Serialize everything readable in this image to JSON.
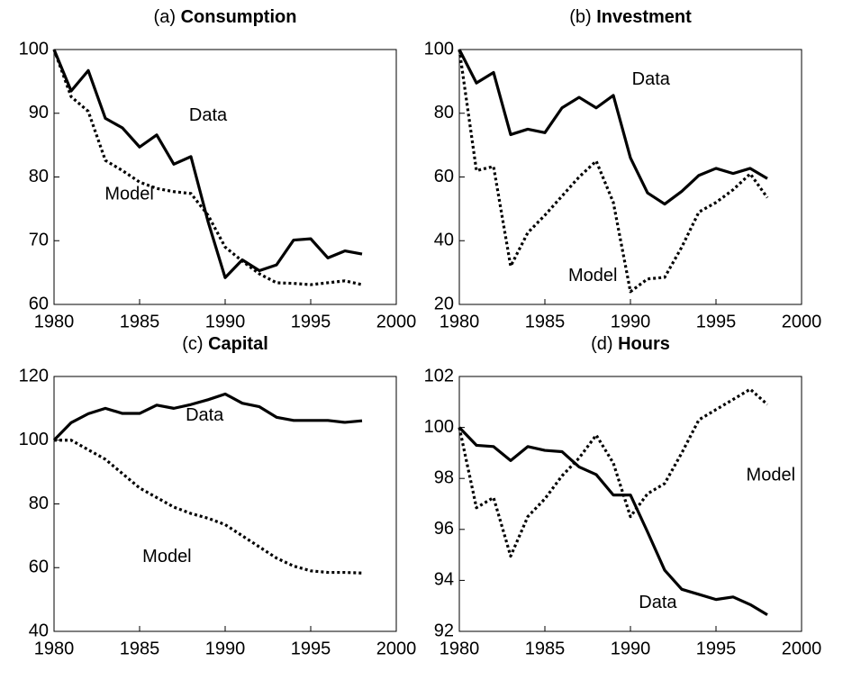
{
  "chart_data": [
    {
      "type": "line",
      "panel": "(a)",
      "title": "Consumption",
      "x": [
        1980,
        1981,
        1982,
        1983,
        1984,
        1985,
        1986,
        1987,
        1988,
        1989,
        1990,
        1991,
        1992,
        1993,
        1994,
        1995,
        1996,
        1997,
        1998
      ],
      "xlim": [
        1980,
        2000
      ],
      "xticks": [
        1980,
        1985,
        1990,
        1995,
        2000
      ],
      "ylim": [
        60,
        100
      ],
      "yticks": [
        60,
        70,
        80,
        90,
        100
      ],
      "series": [
        {
          "name": "Data",
          "color": "#000000",
          "style": "solid",
          "values": [
            100,
            93.5,
            96.7,
            89.2,
            87.7,
            84.7,
            86.6,
            82,
            83.2,
            73,
            64.2,
            67,
            65.3,
            66.2,
            70.1,
            70.3,
            67.3,
            68.4,
            67.9
          ]
        },
        {
          "name": "Model",
          "color": "#000000",
          "style": "dotted",
          "values": [
            100,
            92.6,
            90.3,
            82.6,
            81,
            79.2,
            78.2,
            77.7,
            77.4,
            74,
            69,
            66.8,
            64.8,
            63.4,
            63.3,
            63.1,
            63.4,
            63.7,
            63.1
          ]
        }
      ]
    },
    {
      "type": "line",
      "panel": "(b)",
      "title": "Investment",
      "x": [
        1980,
        1981,
        1982,
        1983,
        1984,
        1985,
        1986,
        1987,
        1988,
        1989,
        1990,
        1991,
        1992,
        1993,
        1994,
        1995,
        1996,
        1997,
        1998
      ],
      "xlim": [
        1980,
        2000
      ],
      "xticks": [
        1980,
        1985,
        1990,
        1995,
        2000
      ],
      "ylim": [
        20,
        100
      ],
      "yticks": [
        20,
        40,
        60,
        80,
        100
      ],
      "series": [
        {
          "name": "Data",
          "color": "#000000",
          "style": "solid",
          "values": [
            100,
            89.5,
            92.8,
            73.3,
            75,
            73.9,
            81.7,
            85,
            81.7,
            85.6,
            66,
            55,
            51.5,
            55.5,
            60.5,
            62.7,
            61.1,
            62.7,
            59.5
          ]
        },
        {
          "name": "Model",
          "color": "#000000",
          "style": "dotted",
          "values": [
            100,
            62,
            63.3,
            32,
            42.5,
            48,
            54,
            60,
            65,
            52,
            24,
            28,
            28.5,
            38,
            49,
            52,
            56,
            61,
            53.5
          ]
        }
      ]
    },
    {
      "type": "line",
      "panel": "(c)",
      "title": "Capital",
      "x": [
        1980,
        1981,
        1982,
        1983,
        1984,
        1985,
        1986,
        1987,
        1988,
        1989,
        1990,
        1991,
        1992,
        1993,
        1994,
        1995,
        1996,
        1997,
        1998
      ],
      "xlim": [
        1980,
        2000
      ],
      "xticks": [
        1980,
        1985,
        1990,
        1995,
        2000
      ],
      "ylim": [
        40,
        120
      ],
      "yticks": [
        40,
        60,
        80,
        100,
        120
      ],
      "series": [
        {
          "name": "Data",
          "color": "#000000",
          "style": "solid",
          "values": [
            100,
            105.5,
            108.3,
            110,
            108.4,
            108.4,
            111,
            110,
            111.2,
            112.7,
            114.5,
            111.6,
            110.5,
            107.2,
            106.2,
            106.2,
            106.2,
            105.6,
            106.1
          ]
        },
        {
          "name": "Model",
          "color": "#000000",
          "style": "dotted",
          "values": [
            100,
            100,
            97,
            94,
            89.5,
            85,
            82,
            79,
            77,
            75.5,
            73.5,
            70,
            66.5,
            63,
            60.5,
            59,
            58.5,
            58.5,
            58.3
          ]
        }
      ]
    },
    {
      "type": "line",
      "panel": "(d)",
      "title": "Hours",
      "x": [
        1980,
        1981,
        1982,
        1983,
        1984,
        1985,
        1986,
        1987,
        1988,
        1989,
        1990,
        1991,
        1992,
        1993,
        1994,
        1995,
        1996,
        1997,
        1998
      ],
      "xlim": [
        1980,
        2000
      ],
      "xticks": [
        1980,
        1985,
        1990,
        1995,
        2000
      ],
      "ylim": [
        92,
        102
      ],
      "yticks": [
        92,
        94,
        96,
        98,
        100,
        102
      ],
      "series": [
        {
          "name": "Data",
          "color": "#000000",
          "style": "solid",
          "values": [
            100,
            99.3,
            99.25,
            98.7,
            99.25,
            99.1,
            99.05,
            98.45,
            98.15,
            97.35,
            97.35,
            95.9,
            94.4,
            93.65,
            93.45,
            93.25,
            93.35,
            93.05,
            92.65
          ]
        },
        {
          "name": "Model",
          "color": "#000000",
          "style": "dotted",
          "values": [
            100,
            96.85,
            97.25,
            94.95,
            96.5,
            97.2,
            98.1,
            98.8,
            99.7,
            98.6,
            96.5,
            97.4,
            97.8,
            99,
            100.3,
            100.7,
            101.1,
            101.5,
            100.9
          ]
        }
      ]
    }
  ]
}
